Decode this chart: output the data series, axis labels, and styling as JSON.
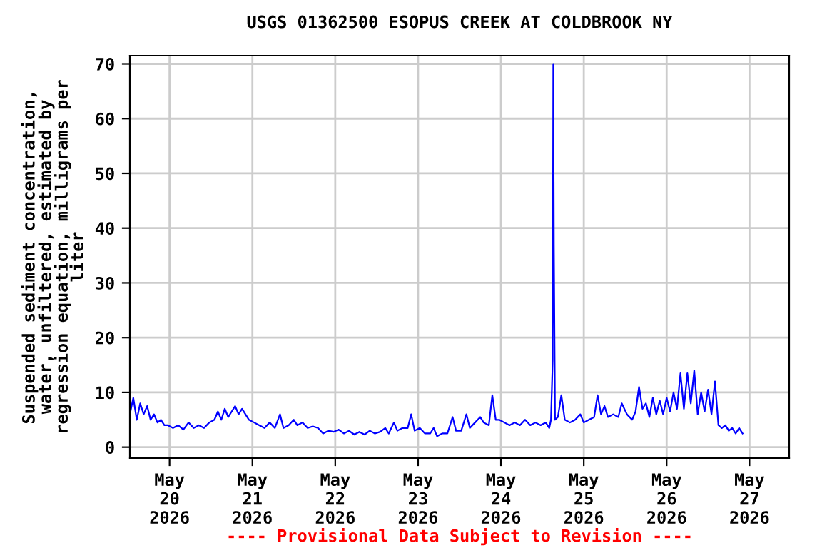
{
  "chart_data": {
    "type": "line",
    "title": "USGS 01362500 ESOPUS CREEK AT COLDBROOK NY",
    "ylabel": "Suspended sediment concentration,\nwater, unfiltered, estimated by\nregression equation, milligrams per\nliter",
    "annotations": [
      "---- Provisional Data Subject to Revision ----"
    ],
    "x": [
      "2026-05-19T12:30",
      "2026-05-19T13:30",
      "2026-05-19T14:30",
      "2026-05-19T15:30",
      "2026-05-19T16:30",
      "2026-05-19T17:30",
      "2026-05-19T18:30",
      "2026-05-19T19:30",
      "2026-05-19T20:30",
      "2026-05-19T21:30",
      "2026-05-19T22:30",
      "2026-05-19T23:30",
      "2026-05-20T01:00",
      "2026-05-20T02:30",
      "2026-05-20T04:00",
      "2026-05-20T05:30",
      "2026-05-20T07:00",
      "2026-05-20T08:30",
      "2026-05-20T10:00",
      "2026-05-20T11:30",
      "2026-05-20T13:00",
      "2026-05-20T14:00",
      "2026-05-20T15:00",
      "2026-05-20T16:00",
      "2026-05-20T17:00",
      "2026-05-20T18:00",
      "2026-05-20T19:00",
      "2026-05-20T20:00",
      "2026-05-20T21:00",
      "2026-05-20T22:00",
      "2026-05-20T23:00",
      "2026-05-21T00:30",
      "2026-05-21T02:00",
      "2026-05-21T03:30",
      "2026-05-21T05:00",
      "2026-05-21T06:30",
      "2026-05-21T08:00",
      "2026-05-21T09:00",
      "2026-05-21T10:30",
      "2026-05-21T12:00",
      "2026-05-21T13:00",
      "2026-05-21T14:30",
      "2026-05-21T16:00",
      "2026-05-21T17:30",
      "2026-05-21T19:00",
      "2026-05-21T20:30",
      "2026-05-21T22:00",
      "2026-05-21T23:30",
      "2026-05-22T01:00",
      "2026-05-22T02:30",
      "2026-05-22T04:00",
      "2026-05-22T05:30",
      "2026-05-22T07:00",
      "2026-05-22T08:30",
      "2026-05-22T10:00",
      "2026-05-22T11:30",
      "2026-05-22T13:00",
      "2026-05-22T14:30",
      "2026-05-22T15:30",
      "2026-05-22T17:00",
      "2026-05-22T18:00",
      "2026-05-22T19:30",
      "2026-05-22T21:00",
      "2026-05-22T22:00",
      "2026-05-22T23:00",
      "2026-05-23T00:30",
      "2026-05-23T02:00",
      "2026-05-23T03:30",
      "2026-05-23T04:30",
      "2026-05-23T05:30",
      "2026-05-23T07:00",
      "2026-05-23T08:30",
      "2026-05-23T10:00",
      "2026-05-23T11:00",
      "2026-05-23T12:30",
      "2026-05-23T14:00",
      "2026-05-23T15:00",
      "2026-05-23T16:30",
      "2026-05-23T18:00",
      "2026-05-23T19:00",
      "2026-05-23T20:30",
      "2026-05-23T21:30",
      "2026-05-23T22:30",
      "2026-05-23T23:30",
      "2026-05-24T01:00",
      "2026-05-24T02:30",
      "2026-05-24T04:00",
      "2026-05-24T05:30",
      "2026-05-24T07:00",
      "2026-05-24T08:30",
      "2026-05-24T10:00",
      "2026-05-24T11:30",
      "2026-05-24T13:00",
      "2026-05-24T14:00",
      "2026-05-24T14:30",
      "2026-05-24T15:00",
      "2026-05-24T15:10",
      "2026-05-24T15:20",
      "2026-05-24T15:40",
      "2026-05-24T16:30",
      "2026-05-24T17:30",
      "2026-05-24T18:30",
      "2026-05-24T20:00",
      "2026-05-24T21:30",
      "2026-05-24T23:00",
      "2026-05-25T00:00",
      "2026-05-25T01:30",
      "2026-05-25T03:00",
      "2026-05-25T04:00",
      "2026-05-25T05:00",
      "2026-05-25T06:00",
      "2026-05-25T07:00",
      "2026-05-25T08:30",
      "2026-05-25T10:00",
      "2026-05-25T11:00",
      "2026-05-25T12:30",
      "2026-05-25T14:00",
      "2026-05-25T15:00",
      "2026-05-25T16:00",
      "2026-05-25T17:00",
      "2026-05-25T18:00",
      "2026-05-25T19:00",
      "2026-05-25T20:00",
      "2026-05-25T21:00",
      "2026-05-25T22:00",
      "2026-05-25T23:00",
      "2026-05-26T00:00",
      "2026-05-26T01:00",
      "2026-05-26T02:00",
      "2026-05-26T03:00",
      "2026-05-26T04:00",
      "2026-05-26T05:00",
      "2026-05-26T06:00",
      "2026-05-26T07:00",
      "2026-05-26T08:00",
      "2026-05-26T09:00",
      "2026-05-26T10:00",
      "2026-05-26T11:00",
      "2026-05-26T12:00",
      "2026-05-26T13:00",
      "2026-05-26T14:00",
      "2026-05-26T15:00",
      "2026-05-26T16:00",
      "2026-05-26T17:00",
      "2026-05-26T18:00",
      "2026-05-26T19:00",
      "2026-05-26T20:00",
      "2026-05-26T21:00",
      "2026-05-26T22:00"
    ],
    "series": [
      {
        "color": "#0000ff",
        "values": [
          6,
          9,
          5,
          8,
          6,
          7.5,
          5,
          6,
          4.5,
          5,
          4,
          4,
          3.5,
          4,
          3.2,
          4.5,
          3.5,
          4,
          3.5,
          4.5,
          5,
          6.5,
          5,
          7,
          5.5,
          6.5,
          7.5,
          6,
          7,
          6,
          5,
          4.5,
          4,
          3.5,
          4.5,
          3.5,
          6,
          3.5,
          4,
          5,
          4,
          4.5,
          3.5,
          3.8,
          3.5,
          2.5,
          3,
          2.8,
          3.2,
          2.5,
          3,
          2.3,
          2.8,
          2.3,
          3,
          2.5,
          2.8,
          3.5,
          2.5,
          4.5,
          3,
          3.5,
          3.5,
          6,
          3,
          3.5,
          2.5,
          2.5,
          3.5,
          2,
          2.5,
          2.5,
          5.5,
          3,
          3,
          6,
          3.5,
          4.5,
          5.5,
          4.5,
          4,
          9.5,
          5,
          5,
          4.5,
          4,
          4.5,
          4,
          5,
          4,
          4.5,
          4,
          4.5,
          3.5,
          5,
          16,
          70,
          37,
          5,
          5.5,
          9.5,
          5,
          4.5,
          5,
          6,
          4.5,
          5,
          5.5,
          9.5,
          6,
          7.5,
          5.5,
          6,
          5.5,
          8,
          6,
          5,
          6.5,
          11,
          7,
          8,
          5.5,
          9,
          6,
          8.5,
          6,
          9,
          6.5,
          10,
          7,
          13.5,
          7,
          13.5,
          8,
          14,
          6,
          10,
          6.5,
          10.5,
          6,
          12,
          4,
          3.5,
          4,
          3,
          3.5,
          2.5,
          3.5,
          2.5
        ]
      }
    ],
    "xlim": [
      "2026-05-19T12:30",
      "2026-05-27T11:30"
    ],
    "xticks": [
      {
        "value": "2026-05-20",
        "label": "May\n20\n2026"
      },
      {
        "value": "2026-05-21",
        "label": "May\n21\n2026"
      },
      {
        "value": "2026-05-22",
        "label": "May\n22\n2026"
      },
      {
        "value": "2026-05-23",
        "label": "May\n23\n2026"
      },
      {
        "value": "2026-05-24",
        "label": "May\n24\n2026"
      },
      {
        "value": "2026-05-25",
        "label": "May\n25\n2026"
      },
      {
        "value": "2026-05-26",
        "label": "May\n26\n2026"
      },
      {
        "value": "2026-05-27",
        "label": "May\n27\n2026"
      }
    ],
    "ylim": [
      -2,
      71.5
    ],
    "yticks": [
      0,
      10,
      20,
      30,
      40,
      50,
      60,
      70
    ],
    "grid": true,
    "line_style": "solid"
  }
}
